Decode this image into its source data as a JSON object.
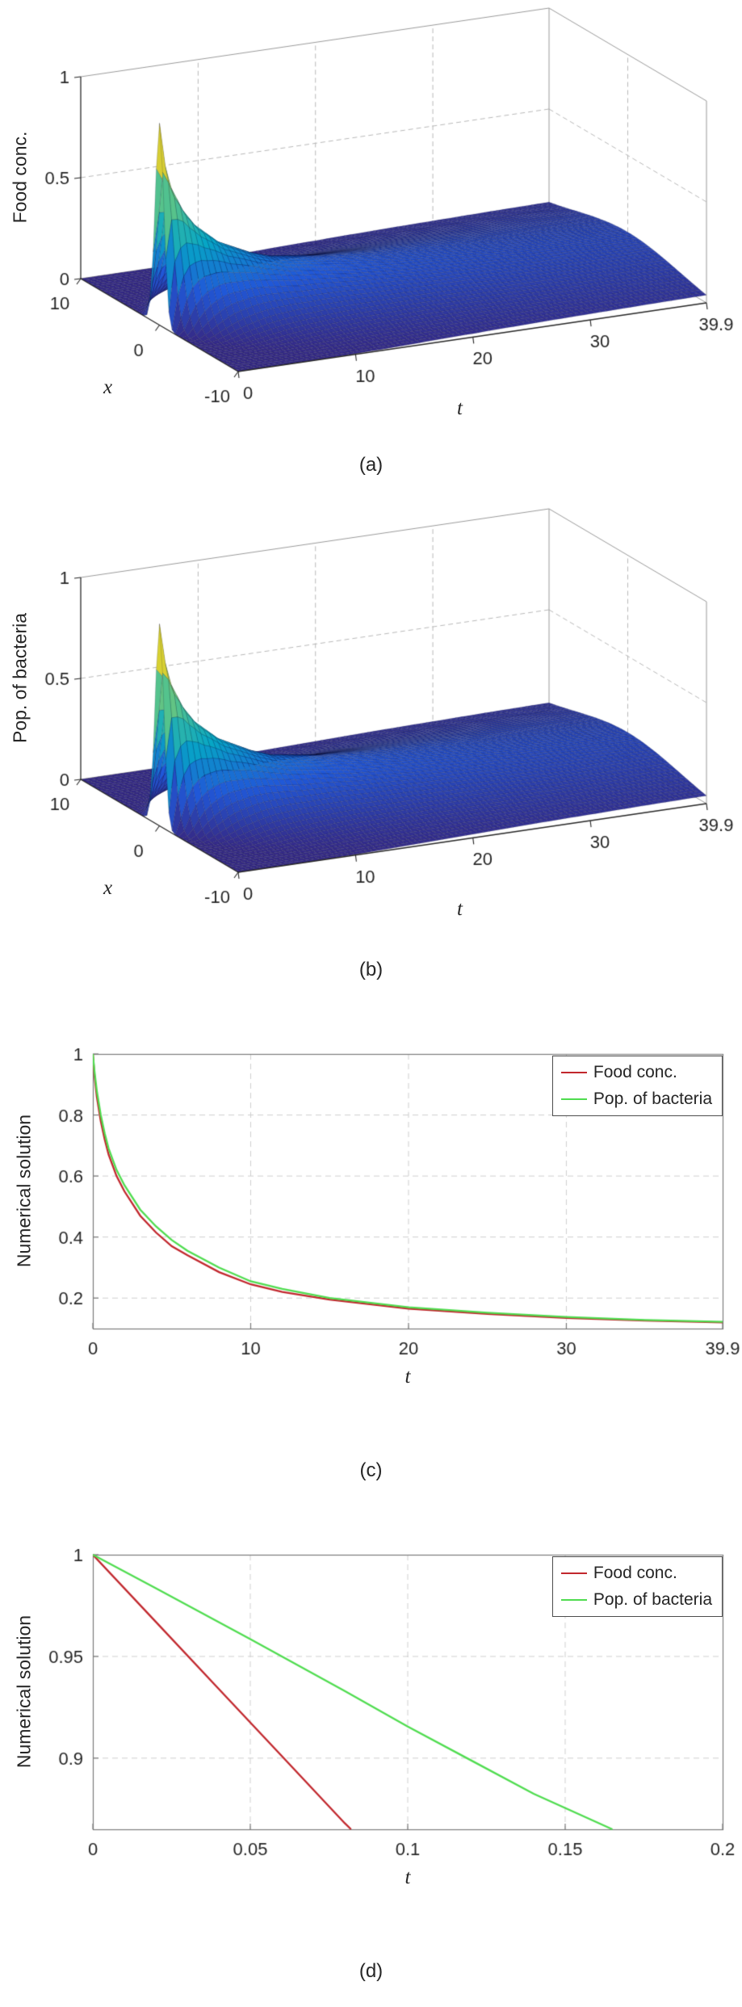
{
  "figure": {
    "background": "#ffffff"
  },
  "chart_data": [
    {
      "type": "surface",
      "caption": "(a)",
      "zlabel": "Food conc.",
      "xlabel": "x",
      "tlabel": "t",
      "xlim": [
        -10,
        10
      ],
      "tlim": [
        0,
        39.9
      ],
      "zlim": [
        0,
        1
      ],
      "x_ticks": [
        {
          "value": 10,
          "label": "10"
        },
        {
          "value": 0,
          "label": "0"
        },
        {
          "value": -10,
          "label": "-10"
        }
      ],
      "t_ticks": [
        {
          "value": 0,
          "label": "0"
        },
        {
          "value": 10,
          "label": "10"
        },
        {
          "value": 20,
          "label": "20"
        },
        {
          "value": 30,
          "label": "30"
        },
        {
          "value": 39.9,
          "label": "39.9"
        }
      ],
      "z_ticks": [
        {
          "value": 0,
          "label": "0"
        },
        {
          "value": 0.5,
          "label": "0.5"
        },
        {
          "value": 1,
          "label": "1"
        }
      ],
      "colormap": "parula",
      "surface_model": {
        "description": "Gaussian pulse centered at x=0 that decays and spreads with t; peak 1 at (x=0,t=0), ~0.12 at t=39.9",
        "formula": "z(x,t)=A(t)*exp(-x^2/w(t)), w(t)=w0+wg*t",
        "A_profile": {
          "t": [
            0,
            0.5,
            1,
            2,
            3,
            5,
            8,
            10,
            15,
            20,
            30,
            39.9
          ],
          "A": [
            1,
            0.78,
            0.67,
            0.55,
            0.47,
            0.37,
            0.285,
            0.245,
            0.195,
            0.165,
            0.135,
            0.12
          ]
        },
        "w0": 0.6,
        "wg": 2.2
      }
    },
    {
      "type": "surface",
      "caption": "(b)",
      "zlabel": "Pop. of bacteria",
      "xlabel": "x",
      "tlabel": "t",
      "xlim": [
        -10,
        10
      ],
      "tlim": [
        0,
        39.9
      ],
      "zlim": [
        0,
        1
      ],
      "x_ticks": [
        {
          "value": 10,
          "label": "10"
        },
        {
          "value": 0,
          "label": "0"
        },
        {
          "value": -10,
          "label": "-10"
        }
      ],
      "t_ticks": [
        {
          "value": 0,
          "label": "0"
        },
        {
          "value": 10,
          "label": "10"
        },
        {
          "value": 20,
          "label": "20"
        },
        {
          "value": 30,
          "label": "30"
        },
        {
          "value": 39.9,
          "label": "39.9"
        }
      ],
      "z_ticks": [
        {
          "value": 0,
          "label": "0"
        },
        {
          "value": 0.5,
          "label": "0.5"
        },
        {
          "value": 1,
          "label": "1"
        }
      ],
      "colormap": "parula",
      "surface_model": {
        "description": "Gaussian pulse centered at x=0 that decays and spreads with t; peak 1 at (x=0,t=0), ~0.122 at t=39.9",
        "formula": "z(x,t)=A(t)*exp(-x^2/w(t)), w(t)=w0+wg*t",
        "A_profile": {
          "t": [
            0,
            0.5,
            1,
            2,
            3,
            5,
            8,
            10,
            15,
            20,
            30,
            39.9
          ],
          "A": [
            1,
            0.8,
            0.69,
            0.57,
            0.49,
            0.39,
            0.3,
            0.255,
            0.2,
            0.17,
            0.138,
            0.122
          ]
        },
        "w0": 0.6,
        "wg": 2.2
      }
    },
    {
      "type": "line",
      "caption": "(c)",
      "xlabel": "t",
      "ylabel": "Numerical solution",
      "xlim": [
        0,
        39.9
      ],
      "ylim": [
        0.1,
        1
      ],
      "grid": "dashed",
      "legend_position": "top-right",
      "x_ticks": [
        {
          "value": 0,
          "label": "0"
        },
        {
          "value": 10,
          "label": "10"
        },
        {
          "value": 20,
          "label": "20"
        },
        {
          "value": 30,
          "label": "30"
        },
        {
          "value": 39.9,
          "label": "39.9"
        }
      ],
      "y_ticks": [
        {
          "value": 0.2,
          "label": "0.2"
        },
        {
          "value": 0.4,
          "label": "0.4"
        },
        {
          "value": 0.6,
          "label": "0.6"
        },
        {
          "value": 0.8,
          "label": "0.8"
        },
        {
          "value": 1,
          "label": "1"
        }
      ],
      "series": [
        {
          "name": "Food conc.",
          "color": "#c1272d",
          "x": [
            0,
            0.1,
            0.25,
            0.5,
            0.75,
            1,
            1.5,
            2,
            3,
            4,
            5,
            6,
            8,
            10,
            12,
            15,
            20,
            25,
            30,
            35,
            39.9
          ],
          "y": [
            1,
            0.93,
            0.86,
            0.78,
            0.72,
            0.67,
            0.6,
            0.55,
            0.47,
            0.415,
            0.37,
            0.34,
            0.285,
            0.245,
            0.22,
            0.195,
            0.165,
            0.148,
            0.135,
            0.126,
            0.12
          ]
        },
        {
          "name": "Pop. of bacteria",
          "color": "#4fdc4f",
          "x": [
            0,
            0.1,
            0.25,
            0.5,
            0.75,
            1,
            1.5,
            2,
            3,
            4,
            5,
            6,
            8,
            10,
            12,
            15,
            20,
            25,
            30,
            35,
            39.9
          ],
          "y": [
            1,
            0.945,
            0.88,
            0.8,
            0.74,
            0.69,
            0.62,
            0.57,
            0.49,
            0.435,
            0.39,
            0.355,
            0.3,
            0.255,
            0.23,
            0.2,
            0.17,
            0.152,
            0.138,
            0.128,
            0.122
          ]
        }
      ]
    },
    {
      "type": "line",
      "caption": "(d)",
      "xlabel": "t",
      "ylabel": "Numerical solution",
      "xlim": [
        0,
        0.2
      ],
      "ylim": [
        0.865,
        1
      ],
      "grid": "dashed",
      "legend_position": "top-right",
      "x_ticks": [
        {
          "value": 0,
          "label": "0"
        },
        {
          "value": 0.05,
          "label": "0.05"
        },
        {
          "value": 0.1,
          "label": "0.1"
        },
        {
          "value": 0.15,
          "label": "0.15"
        },
        {
          "value": 0.2,
          "label": "0.2"
        }
      ],
      "y_ticks": [
        {
          "value": 0.9,
          "label": "0.9"
        },
        {
          "value": 0.95,
          "label": "0.95"
        },
        {
          "value": 1,
          "label": "1"
        }
      ],
      "series": [
        {
          "name": "Food conc.",
          "color": "#c1272d",
          "x": [
            0,
            0.02,
            0.04,
            0.06,
            0.08,
            0.082
          ],
          "y": [
            1,
            0.967,
            0.934,
            0.901,
            0.868,
            0.865
          ]
        },
        {
          "name": "Pop. of bacteria",
          "color": "#4fdc4f",
          "x": [
            0,
            0.02,
            0.05,
            0.08,
            0.1,
            0.12,
            0.14,
            0.165
          ],
          "y": [
            1,
            0.9835,
            0.9585,
            0.933,
            0.9155,
            0.899,
            0.8825,
            0.865
          ]
        }
      ]
    }
  ]
}
